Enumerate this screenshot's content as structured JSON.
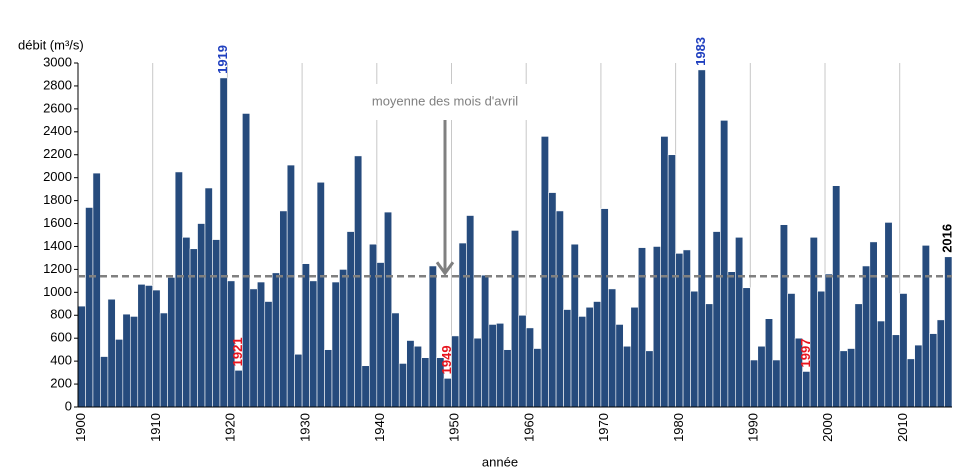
{
  "chart_data": {
    "type": "bar",
    "y_label": "débit (m³/s)",
    "x_label": "année",
    "x": [
      1900,
      1901,
      1902,
      1903,
      1904,
      1905,
      1906,
      1907,
      1908,
      1909,
      1910,
      1911,
      1912,
      1913,
      1914,
      1915,
      1916,
      1917,
      1918,
      1919,
      1920,
      1921,
      1922,
      1923,
      1924,
      1925,
      1926,
      1927,
      1928,
      1929,
      1930,
      1931,
      1932,
      1933,
      1934,
      1935,
      1936,
      1937,
      1938,
      1939,
      1940,
      1941,
      1942,
      1943,
      1944,
      1945,
      1946,
      1947,
      1948,
      1949,
      1950,
      1951,
      1952,
      1953,
      1954,
      1955,
      1956,
      1957,
      1958,
      1959,
      1960,
      1961,
      1962,
      1963,
      1964,
      1965,
      1966,
      1967,
      1968,
      1969,
      1970,
      1971,
      1972,
      1973,
      1974,
      1975,
      1976,
      1977,
      1978,
      1979,
      1980,
      1981,
      1982,
      1983,
      1984,
      1985,
      1986,
      1987,
      1988,
      1989,
      1990,
      1991,
      1992,
      1993,
      1994,
      1995,
      1996,
      1997,
      1998,
      1999,
      2000,
      2001,
      2002,
      2003,
      2004,
      2005,
      2006,
      2007,
      2008,
      2009,
      2010,
      2011,
      2012,
      2013,
      2014,
      2015,
      2016
    ],
    "values": [
      880,
      1740,
      2040,
      440,
      940,
      590,
      810,
      790,
      1070,
      1060,
      1020,
      820,
      1130,
      2050,
      1480,
      1380,
      1600,
      1910,
      1460,
      2870,
      1100,
      320,
      2560,
      1030,
      1090,
      920,
      1170,
      1710,
      2110,
      460,
      1250,
      1100,
      1960,
      500,
      1090,
      1200,
      1530,
      2190,
      360,
      1420,
      1260,
      1700,
      820,
      380,
      580,
      530,
      430,
      1230,
      430,
      250,
      620,
      1430,
      1670,
      600,
      1150,
      720,
      730,
      500,
      1540,
      800,
      690,
      510,
      2360,
      1870,
      1710,
      850,
      1420,
      790,
      870,
      920,
      1730,
      1030,
      720,
      530,
      870,
      1390,
      490,
      1400,
      2360,
      2200,
      1340,
      1370,
      1010,
      2940,
      900,
      1530,
      2500,
      1180,
      1480,
      1040,
      410,
      530,
      770,
      410,
      1590,
      990,
      600,
      310,
      1480,
      1010,
      1160,
      1930,
      490,
      510,
      900,
      1230,
      1440,
      750,
      1610,
      630,
      990,
      420,
      540,
      1410,
      640,
      760,
      1310
    ],
    "color": "#264b7d",
    "xlim": [
      1899.5,
      2016.5
    ],
    "xticks": [
      1900,
      1910,
      1920,
      1930,
      1940,
      1950,
      1960,
      1970,
      1980,
      1990,
      2000,
      2010
    ],
    "ylim": [
      0,
      3000
    ],
    "yticks": [
      0,
      200,
      400,
      600,
      800,
      1000,
      1200,
      1400,
      1600,
      1800,
      2000,
      2200,
      2400,
      2600,
      2800,
      3000
    ],
    "grid": "x",
    "mean": 1140,
    "mean_label": "moyenne des mois d'avril",
    "mean_color": "#808080",
    "highlights": [
      {
        "year": 1919,
        "color": "#1f3fbf"
      },
      {
        "year": 1921,
        "color": "#e8141e"
      },
      {
        "year": 1949,
        "color": "#e8141e"
      },
      {
        "year": 1983,
        "color": "#1f3fbf"
      },
      {
        "year": 1997,
        "color": "#e8141e"
      },
      {
        "year": 2016,
        "color": "#000000"
      }
    ]
  }
}
